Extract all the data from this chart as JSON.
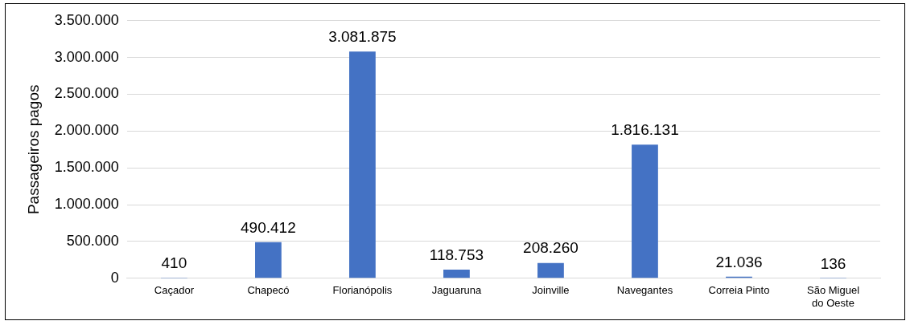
{
  "chart_data": {
    "type": "bar",
    "ylabel": "Passageiros pagos",
    "categories": [
      "Caçador",
      "Chapecó",
      "Florianópolis",
      "Jaguaruna",
      "Joinville",
      "Navegantes",
      "Correia Pinto",
      "São Miguel do Oeste"
    ],
    "values": [
      410,
      490412,
      3081875,
      118753,
      208260,
      1816131,
      21036,
      136
    ],
    "value_labels": [
      "410",
      "490.412",
      "3.081.875",
      "118.753",
      "208.260",
      "1.816.131",
      "21.036",
      "136"
    ],
    "color": "#4472c4",
    "ylim": [
      0,
      3500000
    ],
    "yticks": [
      0,
      {
        "value": 500000,
        "label": "500.000"
      },
      {
        "value": 1000000,
        "label": "1.000.000"
      },
      {
        "value": 1500000,
        "label": "1.500.000"
      },
      {
        "value": 2000000,
        "label": "2.000.000"
      },
      {
        "value": 2500000,
        "label": "2.500.000"
      },
      {
        "value": 3000000,
        "label": "3.000.000"
      },
      {
        "value": 3500000,
        "label": "3.500.000"
      }
    ],
    "grid": "y"
  }
}
